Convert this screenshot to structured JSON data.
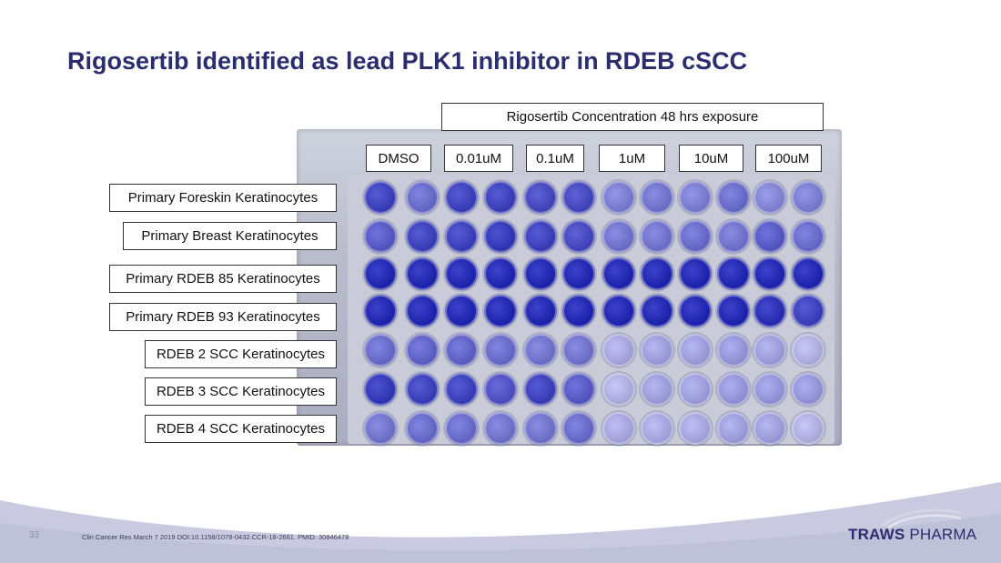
{
  "slide": {
    "title": "Rigosertib identified as lead PLK1 inhibitor in RDEB cSCC",
    "number": "33",
    "citation": "Clin Cancer Res March 7 2019 DOI:10.1158/1078-0432.CCR-18-2661. PMID: 30846478",
    "logo_brand": "TRAWS",
    "logo_suffix": " PHARMA"
  },
  "header_label": "Rigosertib Concentration 48 hrs exposure",
  "concentrations": [
    "DMSO",
    "0.01uM",
    "0.1uM",
    "1uM",
    "10uM",
    "100uM"
  ],
  "cell_lines": [
    "Primary Foreskin Keratinocytes",
    "Primary Breast Keratinocytes",
    "Primary RDEB 85 Keratinocytes",
    "Primary RDEB 93 Keratinocytes",
    "RDEB 2 SCC Keratinocytes",
    "RDEB 3 SCC Keratinocytes",
    "RDEB 4 SCC Keratinocytes"
  ],
  "colors": {
    "title": "#2b2d6e",
    "stain_dark": "#1a1fa8",
    "stain_mid": "#4a4fc0",
    "stain_light": "#8f8fcf",
    "stain_pale": "#c8c6e2"
  },
  "well_intensity": [
    [
      0.85,
      0.6,
      0.85,
      0.85,
      0.8,
      0.8,
      0.5,
      0.55,
      0.5,
      0.6,
      0.45,
      0.5
    ],
    [
      0.7,
      0.85,
      0.85,
      0.9,
      0.85,
      0.8,
      0.55,
      0.55,
      0.6,
      0.55,
      0.7,
      0.6
    ],
    [
      1,
      1,
      1,
      1,
      1,
      1,
      1,
      1,
      1,
      1,
      1,
      1
    ],
    [
      1,
      1,
      1,
      1,
      1,
      1,
      1,
      1,
      1,
      1,
      0.95,
      0.85
    ],
    [
      0.6,
      0.65,
      0.65,
      0.6,
      0.55,
      0.55,
      0.25,
      0.3,
      0.3,
      0.35,
      0.3,
      0.2
    ],
    [
      0.9,
      0.85,
      0.85,
      0.75,
      0.85,
      0.7,
      0.2,
      0.3,
      0.3,
      0.35,
      0.35,
      0.35
    ],
    [
      0.55,
      0.6,
      0.6,
      0.55,
      0.55,
      0.6,
      0.25,
      0.25,
      0.25,
      0.3,
      0.3,
      0.2
    ]
  ]
}
